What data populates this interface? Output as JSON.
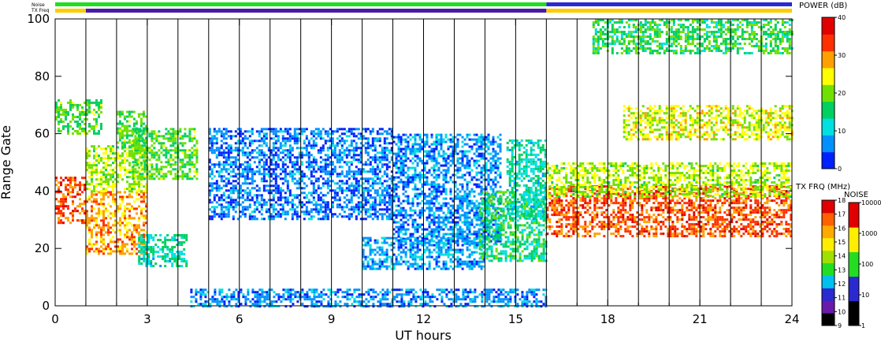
{
  "status_bars": {
    "noise_label": "Noise",
    "freq_label": "TX Freq",
    "noise_segments": [
      {
        "t0": 0,
        "t1": 16,
        "color": "#22dd22"
      },
      {
        "t0": 16,
        "t1": 24,
        "color": "#2a2ad0"
      }
    ],
    "freq_segments": [
      {
        "t0": 0,
        "t1": 1.0,
        "color": "#ffcc00"
      },
      {
        "t0": 1.0,
        "t1": 16.0,
        "color": "#4a1aa8"
      },
      {
        "t0": 16.0,
        "t1": 24,
        "color": "#ffcc00"
      }
    ]
  },
  "chart_data": {
    "type": "heatmap",
    "xlabel": "UT hours",
    "ylabel": "Range Gate",
    "xlim": [
      0,
      24
    ],
    "ylim": [
      0,
      100
    ],
    "x_ticks": [
      "0",
      "3",
      "6",
      "9",
      "12",
      "15",
      "18",
      "21",
      "24"
    ],
    "y_ticks": [
      "0",
      "20",
      "40",
      "60",
      "80",
      "100"
    ],
    "scan_boundaries_hours": [
      1,
      2,
      3,
      4,
      5,
      6,
      7,
      8,
      9,
      10,
      11,
      12,
      13,
      14,
      15,
      16,
      17,
      18,
      19,
      20,
      21,
      22,
      23
    ],
    "regions": [
      {
        "x0": 0.0,
        "x1": 1.0,
        "y0": 29,
        "y1": 45,
        "power": 34
      },
      {
        "x0": 0.0,
        "x1": 1.5,
        "y0": 60,
        "y1": 72,
        "power": 18
      },
      {
        "x0": 1.0,
        "x1": 3.0,
        "y0": 18,
        "y1": 40,
        "power": 30
      },
      {
        "x0": 1.0,
        "x1": 3.0,
        "y0": 40,
        "y1": 56,
        "power": 22
      },
      {
        "x0": 2.0,
        "x1": 3.0,
        "y0": 55,
        "y1": 68,
        "power": 18
      },
      {
        "x0": 2.5,
        "x1": 4.6,
        "y0": 44,
        "y1": 62,
        "power": 18
      },
      {
        "x0": 2.7,
        "x1": 4.3,
        "y0": 14,
        "y1": 25,
        "power": 12
      },
      {
        "x0": 4.4,
        "x1": 16.0,
        "y0": 0,
        "y1": 6,
        "power": 5
      },
      {
        "x0": 5.0,
        "x1": 11.0,
        "y0": 30,
        "y1": 62,
        "power": 4
      },
      {
        "x0": 11.0,
        "x1": 14.5,
        "y0": 22,
        "y1": 60,
        "power": 5
      },
      {
        "x0": 10.0,
        "x1": 14.0,
        "y0": 13,
        "y1": 24,
        "power": 6
      },
      {
        "x0": 13.8,
        "x1": 16.0,
        "y0": 16,
        "y1": 40,
        "power": 15
      },
      {
        "x0": 14.7,
        "x1": 16.0,
        "y0": 30,
        "y1": 58,
        "power": 12
      },
      {
        "x0": 16.0,
        "x1": 24.0,
        "y0": 24,
        "y1": 42,
        "power": 34
      },
      {
        "x0": 16.0,
        "x1": 24.0,
        "y0": 38,
        "y1": 50,
        "power": 22
      },
      {
        "x0": 18.5,
        "x1": 24.0,
        "y0": 58,
        "y1": 70,
        "power": 24
      },
      {
        "x0": 17.5,
        "x1": 24.0,
        "y0": 88,
        "y1": 100,
        "power": 16
      }
    ],
    "colorbars": [
      {
        "title": "POWER (dB)",
        "ticks": [
          "0",
          "10",
          "20",
          "30",
          "40"
        ],
        "colors": [
          "#0020ff",
          "#0090ff",
          "#00e0e0",
          "#00d060",
          "#70e000",
          "#ffff00",
          "#ffa000",
          "#ff3000",
          "#e00000"
        ]
      },
      {
        "title": "TX FRQ (MHz)",
        "ticks": [
          "9",
          "10",
          "11",
          "12",
          "13",
          "14",
          "15",
          "16",
          "17",
          "18"
        ],
        "colors": [
          "#000000",
          "#6a1aa8",
          "#2a2ad0",
          "#00c0f0",
          "#22dd22",
          "#a0e000",
          "#ffee00",
          "#ffaa00",
          "#ff6000",
          "#e00000"
        ]
      },
      {
        "title": "NOISE",
        "ticks": [
          "1",
          "10",
          "100",
          "1000",
          "10000"
        ],
        "colors": [
          "#000000",
          "#2a2ad0",
          "#22dd22",
          "#ffee00",
          "#e00000"
        ]
      }
    ]
  }
}
